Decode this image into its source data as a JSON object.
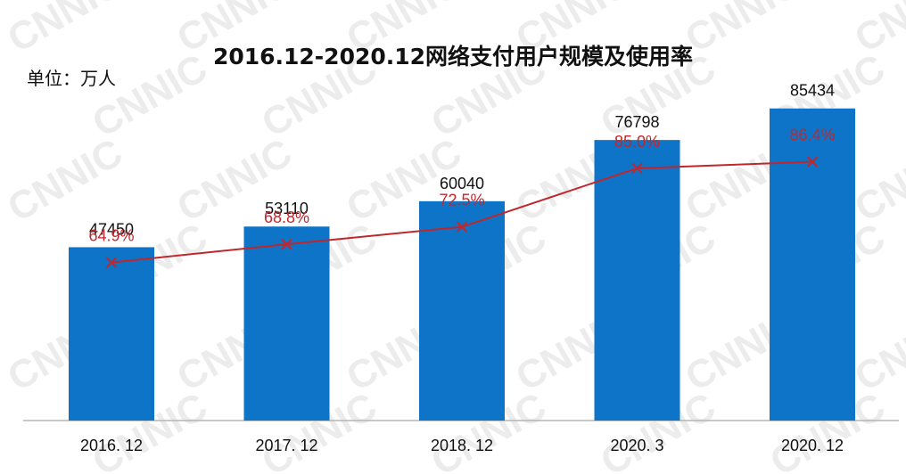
{
  "watermark": {
    "text": "CNNIC",
    "color": "#ececec"
  },
  "chart_data": {
    "type": "bar",
    "title": "2016.12-2020.12网络支付用户规模及使用率",
    "unit_label": "单位：万人",
    "categories": [
      "2016. 12",
      "2017. 12",
      "2018. 12",
      "2020. 3",
      "2020. 12"
    ],
    "series": [
      {
        "type": "bar",
        "values": [
          47450,
          53110,
          60040,
          76798,
          85434
        ],
        "color": "#0e74c7",
        "labels": [
          "47450",
          "53110",
          "60040",
          "76798",
          "85434"
        ]
      },
      {
        "type": "line",
        "values": [
          64.9,
          68.8,
          72.5,
          85.0,
          86.4
        ],
        "color": "#c0272d",
        "labels": [
          "64.9%",
          "68.8%",
          "72.5%",
          "85.0%",
          "86.4%"
        ]
      }
    ],
    "xlabel": "",
    "ylabel": "",
    "grid": false,
    "legend": false
  }
}
